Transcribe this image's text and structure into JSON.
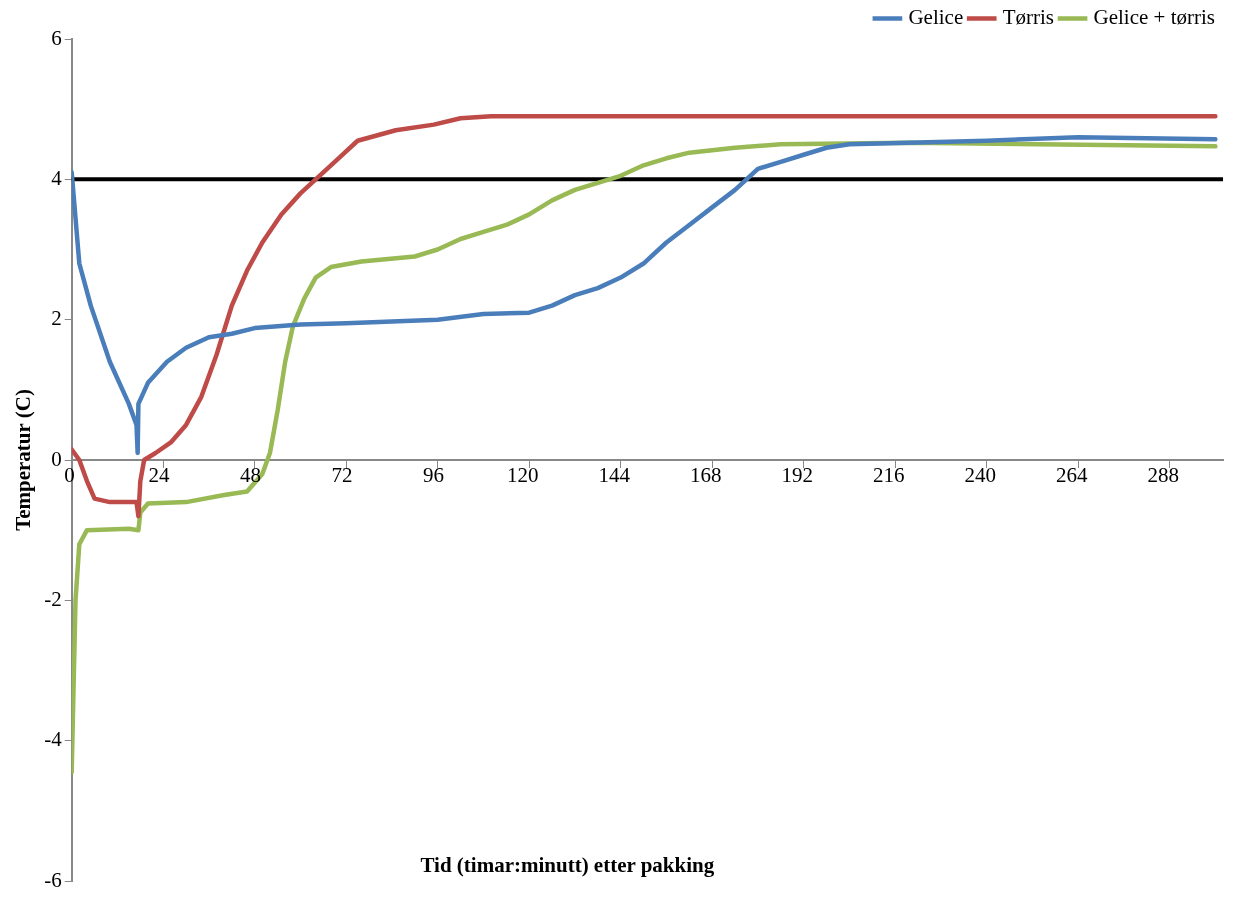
{
  "chart_data": {
    "type": "line",
    "xlabel": "Tid (timar:minutt) etter pakking",
    "ylabel": "Temperatur (C)",
    "xlim": [
      0,
      302
    ],
    "xticks": [
      0,
      24,
      48,
      72,
      96,
      120,
      144,
      168,
      192,
      216,
      240,
      264,
      288
    ],
    "ylim": [
      -6,
      6
    ],
    "yticks": [
      -6,
      -4,
      -2,
      0,
      2,
      4,
      6
    ],
    "grid": false,
    "legend": "top right",
    "marker": "none",
    "line_style": "solid",
    "ref_lines": [
      {
        "axis": "y",
        "value": 4,
        "color": "#000000"
      }
    ],
    "series": [
      {
        "name": "Gelice",
        "color": "#4a7ebb",
        "x": [
          0,
          2,
          5,
          10,
          15,
          17,
          17.3,
          17.5,
          20,
          25,
          30,
          36,
          42,
          48,
          60,
          72,
          96,
          108,
          120,
          126,
          132,
          138,
          144,
          150,
          156,
          162,
          168,
          174,
          180,
          186,
          192,
          198,
          204,
          240,
          264,
          300
        ],
        "values": [
          4.1,
          2.8,
          2.2,
          1.4,
          0.8,
          0.5,
          0.1,
          0.8,
          1.1,
          1.4,
          1.6,
          1.75,
          1.8,
          1.88,
          1.93,
          1.95,
          2.0,
          2.08,
          2.1,
          2.2,
          2.35,
          2.45,
          2.6,
          2.8,
          3.1,
          3.35,
          3.6,
          3.85,
          4.15,
          4.25,
          4.35,
          4.45,
          4.5,
          4.55,
          4.6,
          4.57
        ]
      },
      {
        "name": "Tørris",
        "color": "#be4b48",
        "x": [
          0,
          2,
          4,
          6,
          10,
          17,
          17.5,
          18,
          19,
          22,
          26,
          30,
          34,
          38,
          42,
          46,
          50,
          55,
          60,
          65,
          70,
          75,
          85,
          95,
          102,
          110,
          300
        ],
        "values": [
          0.15,
          0.0,
          -0.3,
          -0.55,
          -0.6,
          -0.6,
          -0.8,
          -0.3,
          0,
          0.1,
          0.25,
          0.5,
          0.9,
          1.5,
          2.2,
          2.7,
          3.1,
          3.5,
          3.8,
          4.05,
          4.3,
          4.55,
          4.7,
          4.78,
          4.87,
          4.9,
          4.9
        ]
      },
      {
        "name": "Gelice + tørris",
        "color": "#98b954",
        "x": [
          0,
          1,
          2,
          4,
          15,
          17.5,
          18,
          20,
          30,
          40,
          46,
          50,
          52,
          54,
          56,
          58,
          61,
          64,
          68,
          76,
          90,
          96,
          102,
          108,
          114,
          120,
          126,
          132,
          138,
          144,
          150,
          156,
          162,
          174,
          186,
          220,
          300
        ],
        "values": [
          -4.45,
          -2.0,
          -1.2,
          -1.0,
          -0.98,
          -1.0,
          -0.75,
          -0.62,
          -0.6,
          -0.5,
          -0.45,
          -0.2,
          0.1,
          0.7,
          1.4,
          1.9,
          2.3,
          2.6,
          2.75,
          2.83,
          2.9,
          3.0,
          3.15,
          3.25,
          3.35,
          3.5,
          3.7,
          3.85,
          3.95,
          4.05,
          4.2,
          4.3,
          4.38,
          4.45,
          4.5,
          4.52,
          4.47
        ]
      }
    ]
  }
}
